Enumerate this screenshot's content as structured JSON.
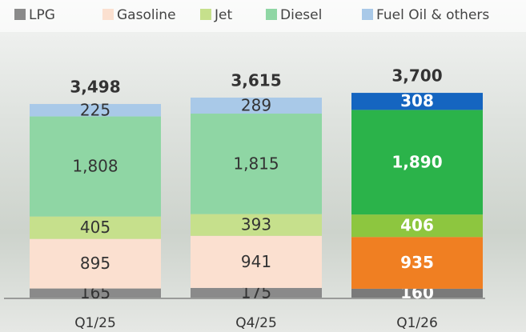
{
  "chart_data": {
    "type": "stacked_bar",
    "categories": [
      "Q1/25",
      "Q4/25",
      "Q1/26"
    ],
    "series": [
      {
        "name": "LPG",
        "color": "#8a8a8a",
        "colors": [
          "#8a8a8a",
          "#8a8a8a",
          "#7a7a7a"
        ],
        "values": [
          165,
          175,
          160
        ],
        "value_labels": [
          "165",
          "175",
          "160"
        ]
      },
      {
        "name": "Gasoline",
        "color": "#fbe0d0",
        "colors": [
          "#fbe0d0",
          "#fbe0d0",
          "#f07f22"
        ],
        "values": [
          895,
          941,
          935
        ],
        "value_labels": [
          "895",
          "941",
          "935"
        ]
      },
      {
        "name": "Jet",
        "color": "#c6e08c",
        "colors": [
          "#c6e08c",
          "#c6e08c",
          "#8dc63f"
        ],
        "values": [
          405,
          393,
          406
        ],
        "value_labels": [
          "405",
          "393",
          "406"
        ]
      },
      {
        "name": "Diesel",
        "color": "#8fd6a4",
        "colors": [
          "#8fd6a4",
          "#8fd6a4",
          "#2bb34a"
        ],
        "values": [
          1808,
          1815,
          1890
        ],
        "value_labels": [
          "1,808",
          "1,815",
          "1,890"
        ]
      },
      {
        "name": "Fuel Oil & others",
        "color": "#a9c9e8",
        "colors": [
          "#a9c9e8",
          "#a9c9e8",
          "#1565c0"
        ],
        "values": [
          225,
          289,
          308
        ],
        "value_labels": [
          "225",
          "289",
          "308"
        ]
      }
    ],
    "totals": {
      "values": [
        3498,
        3615,
        3700
      ],
      "value_labels": [
        "3,498",
        "3,615",
        "3,700"
      ]
    }
  }
}
